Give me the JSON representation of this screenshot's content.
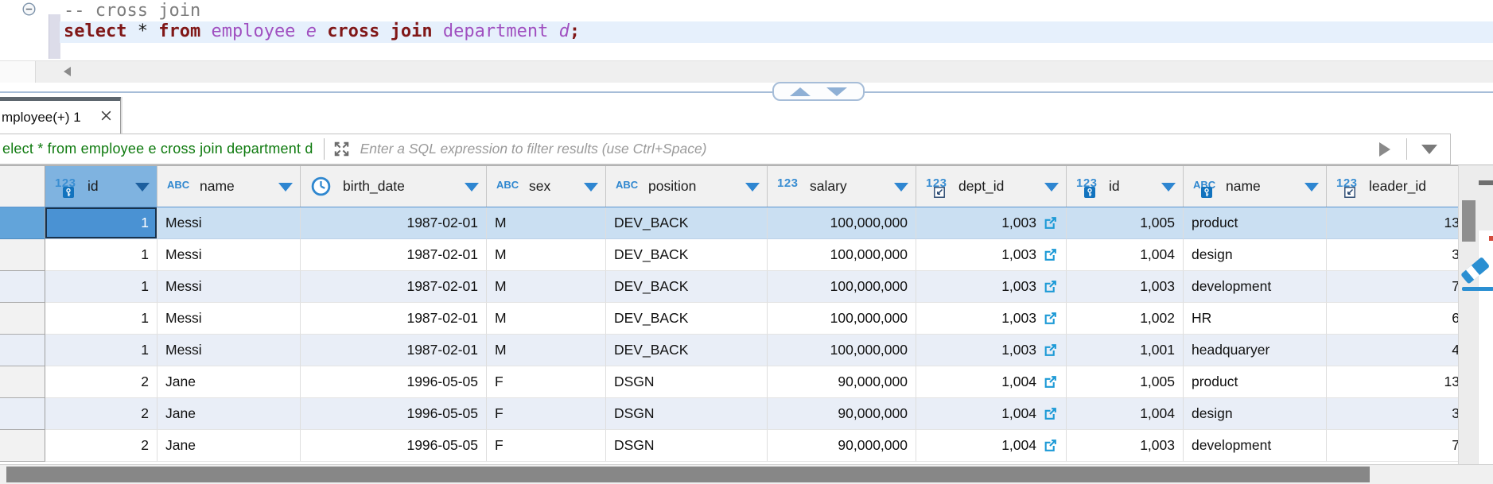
{
  "editor": {
    "comment_line": "-- cross join",
    "code_segments": [
      {
        "text": "select",
        "kind": "kw"
      },
      {
        "text": " * ",
        "kind": "pl"
      },
      {
        "text": "from",
        "kind": "kw"
      },
      {
        "text": " ",
        "kind": "pl"
      },
      {
        "text": "employee",
        "kind": "id"
      },
      {
        "text": " ",
        "kind": "pl"
      },
      {
        "text": "e",
        "kind": "al"
      },
      {
        "text": " ",
        "kind": "pl"
      },
      {
        "text": "cross",
        "kind": "kw"
      },
      {
        "text": " ",
        "kind": "pl"
      },
      {
        "text": "join",
        "kind": "kw"
      },
      {
        "text": " ",
        "kind": "pl"
      },
      {
        "text": "department",
        "kind": "id"
      },
      {
        "text": " ",
        "kind": "pl"
      },
      {
        "text": "d",
        "kind": "al"
      },
      {
        "text": ";",
        "kind": "kw"
      }
    ]
  },
  "results_tab": {
    "label": "mployee(+) 1"
  },
  "filter_bar": {
    "query_text": "elect * from employee e cross join department d",
    "placeholder": "Enter a SQL expression to filter results (use Ctrl+Space)"
  },
  "grid": {
    "columns": [
      {
        "label": "",
        "type": "gutter"
      },
      {
        "label": "id",
        "type": "numeric",
        "badge": "primary-key",
        "selected": true
      },
      {
        "label": "name",
        "type": "text"
      },
      {
        "label": "birth_date",
        "type": "datetime"
      },
      {
        "label": "sex",
        "type": "text"
      },
      {
        "label": "position",
        "type": "text"
      },
      {
        "label": "salary",
        "type": "numeric"
      },
      {
        "label": "dept_id",
        "type": "numeric",
        "badge": "foreign-key"
      },
      {
        "label": "id",
        "type": "numeric",
        "badge": "primary-key"
      },
      {
        "label": "name",
        "type": "text",
        "badge": "primary-key"
      },
      {
        "label": "leader_id",
        "type": "numeric",
        "badge": "foreign-key",
        "arrow_hidden": true
      }
    ],
    "rows": [
      [
        "1",
        "Messi",
        "1987-02-01",
        "M",
        "DEV_BACK",
        "100,000,000",
        "1,003",
        "1,005",
        "product",
        "13"
      ],
      [
        "1",
        "Messi",
        "1987-02-01",
        "M",
        "DEV_BACK",
        "100,000,000",
        "1,003",
        "1,004",
        "design",
        "3"
      ],
      [
        "1",
        "Messi",
        "1987-02-01",
        "M",
        "DEV_BACK",
        "100,000,000",
        "1,003",
        "1,003",
        "development",
        "7"
      ],
      [
        "1",
        "Messi",
        "1987-02-01",
        "M",
        "DEV_BACK",
        "100,000,000",
        "1,003",
        "1,002",
        "HR",
        "6"
      ],
      [
        "1",
        "Messi",
        "1987-02-01",
        "M",
        "DEV_BACK",
        "100,000,000",
        "1,003",
        "1,001",
        "headquaryer",
        "4"
      ],
      [
        "2",
        "Jane",
        "1996-05-05",
        "F",
        "DSGN",
        "90,000,000",
        "1,004",
        "1,005",
        "product",
        "13"
      ],
      [
        "2",
        "Jane",
        "1996-05-05",
        "F",
        "DSGN",
        "90,000,000",
        "1,004",
        "1,004",
        "design",
        "3"
      ],
      [
        "2",
        "Jane",
        "1996-05-05",
        "F",
        "DSGN",
        "90,000,000",
        "1,004",
        "1,003",
        "development",
        "7"
      ]
    ],
    "selected_row_index": 0,
    "focused_cell": {
      "row": 0,
      "column": "id",
      "value": "1"
    }
  },
  "colors": {
    "selection_blue": "#4a92d3",
    "selected_row_bg": "#cadff2",
    "stripe_bg": "#e9eef7",
    "selected_header_bg": "#7fb3e0",
    "type_icon_blue": "#2f87cf",
    "link_blue": "#1d9ad6",
    "keyword_red": "#801717",
    "identifier_purple": "#a050c0",
    "comment_gray": "#7d7d7d",
    "filter_query_green": "#0e7a0e",
    "splitter_blue": "#a6bdd8"
  }
}
